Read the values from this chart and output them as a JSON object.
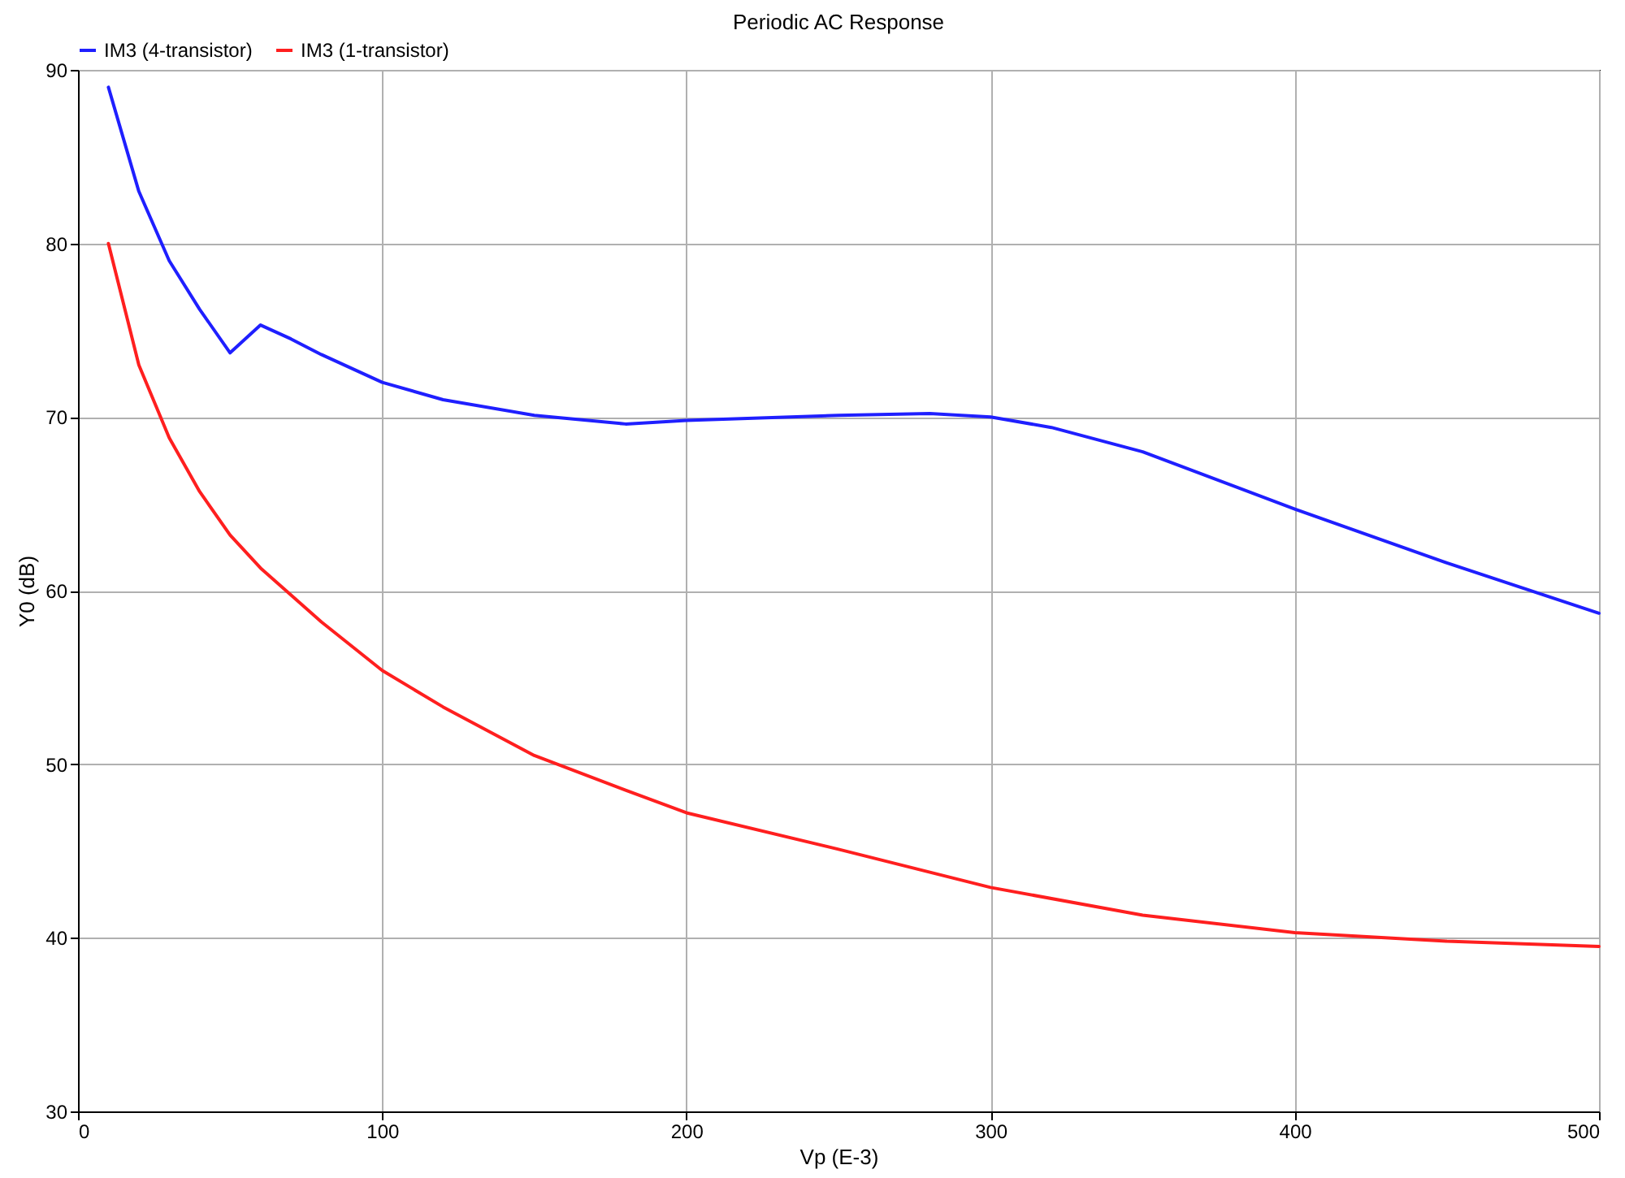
{
  "chart_data": {
    "type": "line",
    "title": "Periodic AC Response",
    "xlabel": "Vp (E-3)",
    "ylabel": "Y0 (dB)",
    "xlim": [
      0,
      500
    ],
    "xticks": [
      0,
      100,
      200,
      300,
      400,
      500
    ],
    "ylim": [
      30,
      90
    ],
    "yticks": [
      30,
      40,
      50,
      60,
      70,
      80,
      90
    ],
    "grid": true,
    "legend": "top left",
    "series": [
      {
        "name": "IM3 (4-transistor)",
        "color": "#1f1fff",
        "x": [
          10,
          20,
          30,
          40,
          50,
          60,
          70,
          80,
          100,
          120,
          150,
          180,
          200,
          250,
          280,
          300,
          320,
          350,
          400,
          450,
          500
        ],
        "values": [
          89,
          83,
          79,
          76.2,
          73.7,
          75.3,
          74.5,
          73.6,
          72,
          71,
          70.1,
          69.6,
          69.8,
          70.1,
          70.2,
          70,
          69.4,
          68,
          64.7,
          61.6,
          58.7
        ]
      },
      {
        "name": "IM3 (1-transistor)",
        "color": "#ff1f1f",
        "x": [
          10,
          20,
          30,
          40,
          50,
          60,
          80,
          100,
          120,
          150,
          180,
          200,
          250,
          300,
          350,
          400,
          450,
          500
        ],
        "values": [
          80,
          73,
          68.8,
          65.7,
          63.2,
          61.3,
          58.2,
          55.4,
          53.3,
          50.5,
          48.5,
          47.2,
          45.1,
          42.9,
          41.3,
          40.3,
          39.8,
          39.5
        ]
      }
    ]
  }
}
